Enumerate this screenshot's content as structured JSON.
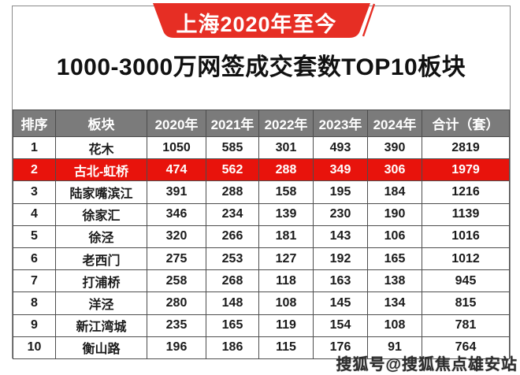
{
  "header": {
    "badge_label": "上海2020年至今",
    "title": "1000-3000万网签成交套数TOP10板块"
  },
  "watermark": {
    "text": "搜狐号@搜狐焦点雄安站"
  },
  "colors": {
    "badge_red": "#e62e24",
    "highlight_red": "#e8130c",
    "header_gray": "#7b7b7b",
    "grid_border": "#4d4d4d",
    "frame_border": "#8a8a8a"
  },
  "chart_data": {
    "type": "table",
    "title": "1000-3000万网签成交套数TOP10板块",
    "subtitle": "上海2020年至今",
    "columns": [
      "排序",
      "板块",
      "2020年",
      "2021年",
      "2022年",
      "2023年",
      "2024年",
      "合计（套）"
    ],
    "highlight_row_index": 1,
    "rows": [
      [
        "1",
        "花木",
        "1050",
        "585",
        "301",
        "493",
        "390",
        "2819"
      ],
      [
        "2",
        "古北-虹桥",
        "474",
        "562",
        "288",
        "349",
        "306",
        "1979"
      ],
      [
        "3",
        "陆家嘴滨江",
        "391",
        "288",
        "158",
        "195",
        "184",
        "1216"
      ],
      [
        "4",
        "徐家汇",
        "346",
        "234",
        "139",
        "230",
        "190",
        "1139"
      ],
      [
        "5",
        "徐泾",
        "320",
        "266",
        "181",
        "143",
        "106",
        "1016"
      ],
      [
        "6",
        "老西门",
        "275",
        "253",
        "127",
        "192",
        "165",
        "1012"
      ],
      [
        "7",
        "打浦桥",
        "258",
        "268",
        "118",
        "163",
        "138",
        "945"
      ],
      [
        "8",
        "洋泾",
        "280",
        "148",
        "108",
        "145",
        "134",
        "815"
      ],
      [
        "9",
        "新江湾城",
        "235",
        "165",
        "119",
        "154",
        "108",
        "781"
      ],
      [
        "10",
        "衡山路",
        "196",
        "186",
        "115",
        "176",
        "91",
        "764"
      ]
    ]
  }
}
